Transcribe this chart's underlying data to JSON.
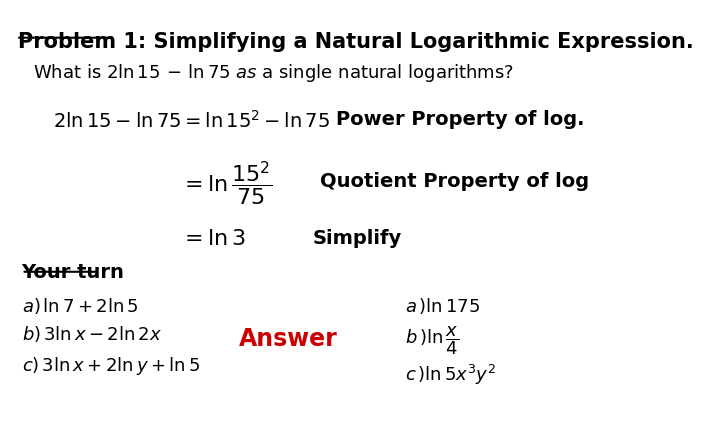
{
  "title": "Problem 1: Simplifying a Natural Logarithmic Expression.",
  "subtitle": "What is 2ln15 - ln75 as a single natural logarithms?",
  "label1": "Power Property of log.",
  "label2": "Quotient Property of log",
  "label3": "Simplify",
  "your_turn": "Your turn",
  "answer_label": "Answer",
  "bg_color": "#ffffff",
  "title_color": "#000000",
  "answer_color": "#cc0000",
  "your_turn_color": "#000000",
  "eq_color": "#000000",
  "label_color": "#000000"
}
